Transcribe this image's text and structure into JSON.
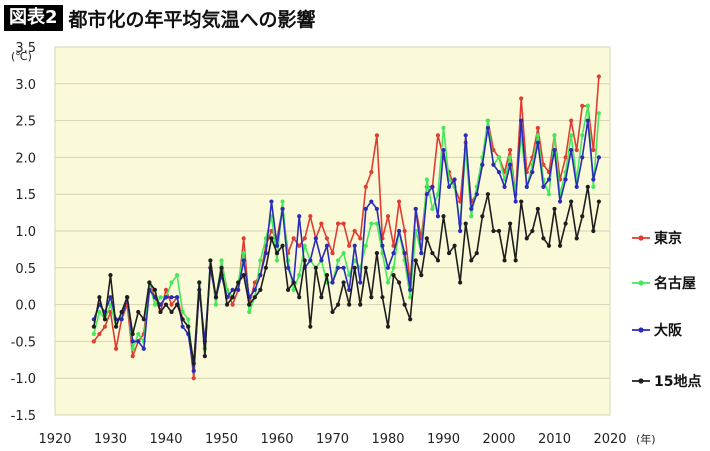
{
  "header": {
    "tag": "図表2",
    "title": "都市化の年平均気温への影響"
  },
  "chart_data": {
    "type": "line",
    "title": "都市化の年平均気温への影響",
    "xlabel": "(年)",
    "ylabel": "(℃)",
    "xlim": [
      1920,
      2020
    ],
    "ylim": [
      -1.5,
      3.5
    ],
    "x_ticks": [
      1920,
      1930,
      1940,
      1950,
      1960,
      1970,
      1980,
      1990,
      2000,
      2010,
      2020
    ],
    "y_ticks": [
      3.5,
      3.0,
      2.5,
      2.0,
      1.5,
      1.0,
      0.5,
      0.0,
      -0.5,
      -1.0,
      -1.5
    ],
    "x_tick_labels": [
      "1920",
      "1930",
      "1940",
      "1950",
      "1960",
      "1970",
      "1980",
      "1990",
      "2000",
      "2010",
      "2020"
    ],
    "y_tick_labels": [
      "3.5",
      "3.0",
      "2.5",
      "2.0",
      "1.5",
      "1.0",
      "0.5",
      "0.0",
      "-0.5",
      "-1.0",
      "-1.5"
    ],
    "grid": "horizontal",
    "plot_background": "#fbfad8",
    "legend_position": "right",
    "x": [
      1927,
      1928,
      1929,
      1930,
      1931,
      1932,
      1933,
      1934,
      1935,
      1936,
      1937,
      1938,
      1939,
      1940,
      1941,
      1942,
      1943,
      1944,
      1945,
      1946,
      1947,
      1948,
      1949,
      1950,
      1951,
      1952,
      1953,
      1954,
      1955,
      1956,
      1957,
      1958,
      1959,
      1960,
      1961,
      1962,
      1963,
      1964,
      1965,
      1966,
      1967,
      1968,
      1969,
      1970,
      1971,
      1972,
      1973,
      1974,
      1975,
      1976,
      1977,
      1978,
      1979,
      1980,
      1981,
      1982,
      1983,
      1984,
      1985,
      1986,
      1987,
      1988,
      1989,
      1990,
      1991,
      1992,
      1993,
      1994,
      1995,
      1996,
      1997,
      1998,
      1999,
      2000,
      2001,
      2002,
      2003,
      2004,
      2005,
      2006,
      2007,
      2008,
      2009,
      2010,
      2011,
      2012,
      2013,
      2014,
      2015,
      2016,
      2017,
      2018
    ],
    "series": [
      {
        "name": "東京",
        "color": "#e03c31",
        "values": [
          -0.5,
          -0.4,
          -0.3,
          -0.1,
          -0.6,
          -0.2,
          0.0,
          -0.7,
          -0.5,
          -0.4,
          0.3,
          0.1,
          -0.1,
          0.2,
          0.0,
          0.1,
          -0.2,
          -0.3,
          -1.0,
          0.3,
          -0.6,
          0.5,
          0.1,
          0.4,
          0.2,
          0.0,
          0.2,
          0.9,
          0.0,
          0.3,
          0.4,
          0.8,
          1.0,
          0.9,
          1.3,
          0.7,
          0.9,
          0.8,
          0.9,
          1.2,
          0.9,
          1.1,
          0.9,
          0.7,
          1.1,
          1.1,
          0.8,
          1.0,
          0.9,
          1.6,
          1.8,
          2.3,
          0.9,
          1.2,
          0.8,
          1.4,
          1.0,
          0.3,
          1.3,
          0.9,
          1.6,
          1.6,
          2.3,
          2.0,
          1.8,
          1.6,
          1.4,
          2.2,
          1.4,
          1.5,
          1.9,
          2.5,
          2.1,
          2.0,
          1.8,
          2.1,
          1.5,
          2.8,
          1.8,
          2.0,
          2.4,
          1.9,
          1.8,
          2.3,
          1.7,
          2.0,
          2.5,
          2.1,
          2.7,
          2.7,
          2.1,
          3.1
        ]
      },
      {
        "name": "名古屋",
        "color": "#44e85a",
        "values": [
          -0.4,
          -0.1,
          -0.2,
          0.0,
          -0.3,
          -0.1,
          0.1,
          -0.6,
          -0.4,
          -0.5,
          0.3,
          0.0,
          0.1,
          0.1,
          0.3,
          0.4,
          -0.1,
          -0.2,
          -0.9,
          0.3,
          -0.6,
          0.6,
          0.0,
          0.6,
          0.2,
          0.1,
          0.3,
          0.7,
          -0.1,
          0.1,
          0.6,
          0.9,
          1.2,
          0.6,
          1.4,
          0.6,
          0.2,
          0.4,
          0.8,
          0.6,
          0.5,
          0.6,
          0.3,
          0.3,
          0.6,
          0.7,
          0.4,
          0.6,
          0.5,
          0.8,
          1.1,
          1.1,
          0.7,
          0.3,
          0.5,
          1.0,
          0.6,
          0.1,
          1.0,
          0.7,
          1.7,
          1.3,
          1.5,
          2.4,
          1.7,
          1.6,
          1.1,
          2.1,
          1.2,
          1.6,
          2.0,
          2.5,
          1.9,
          2.0,
          1.7,
          2.0,
          1.5,
          2.3,
          1.6,
          1.9,
          2.3,
          1.7,
          1.5,
          2.3,
          1.5,
          1.8,
          2.3,
          1.7,
          2.3,
          2.7,
          1.6,
          2.6
        ]
      },
      {
        "name": "大阪",
        "color": "#2b2bb8",
        "values": [
          -0.2,
          0.0,
          -0.1,
          0.1,
          -0.2,
          -0.2,
          0.1,
          -0.5,
          -0.5,
          -0.6,
          0.2,
          0.1,
          0.0,
          0.1,
          0.1,
          0.1,
          -0.3,
          -0.4,
          -0.9,
          0.2,
          -0.5,
          0.5,
          0.1,
          0.4,
          0.1,
          0.2,
          0.2,
          0.6,
          0.1,
          0.2,
          0.4,
          0.7,
          1.4,
          0.8,
          1.3,
          0.5,
          0.3,
          1.2,
          0.5,
          0.6,
          0.9,
          0.6,
          0.8,
          0.3,
          0.5,
          0.5,
          0.2,
          0.8,
          0.3,
          1.3,
          1.4,
          1.3,
          0.8,
          0.5,
          0.7,
          1.0,
          0.7,
          0.2,
          1.3,
          0.7,
          1.5,
          1.6,
          1.2,
          2.1,
          1.6,
          1.7,
          1.0,
          2.3,
          1.3,
          1.5,
          1.9,
          2.4,
          1.9,
          1.8,
          1.6,
          1.9,
          1.4,
          2.5,
          1.6,
          1.8,
          2.2,
          1.6,
          1.7,
          2.1,
          1.4,
          1.7,
          2.1,
          1.6,
          2.0,
          2.5,
          1.7,
          2.0
        ]
      },
      {
        "name": "15地点",
        "color": "#1e1e1e",
        "values": [
          -0.3,
          0.1,
          -0.2,
          0.4,
          -0.3,
          -0.1,
          0.1,
          -0.4,
          -0.1,
          -0.2,
          0.3,
          0.2,
          -0.1,
          0.0,
          -0.1,
          0.0,
          -0.2,
          -0.3,
          -0.8,
          0.3,
          -0.7,
          0.6,
          0.1,
          0.5,
          0.0,
          0.1,
          0.3,
          0.4,
          0.0,
          0.1,
          0.2,
          0.5,
          0.9,
          0.7,
          0.8,
          0.2,
          0.3,
          0.1,
          0.6,
          -0.3,
          0.5,
          0.1,
          0.4,
          -0.1,
          0.0,
          0.3,
          0.0,
          0.5,
          0.0,
          0.5,
          0.1,
          0.7,
          0.1,
          -0.3,
          0.4,
          0.3,
          0.0,
          -0.2,
          0.6,
          0.4,
          0.9,
          0.7,
          0.6,
          1.2,
          0.7,
          0.8,
          0.3,
          1.1,
          0.6,
          0.7,
          1.2,
          1.5,
          1.0,
          1.0,
          0.6,
          1.1,
          0.6,
          1.4,
          0.9,
          1.0,
          1.3,
          0.9,
          0.8,
          1.3,
          0.8,
          1.1,
          1.4,
          0.9,
          1.2,
          1.6,
          1.0,
          1.4
        ]
      }
    ]
  }
}
